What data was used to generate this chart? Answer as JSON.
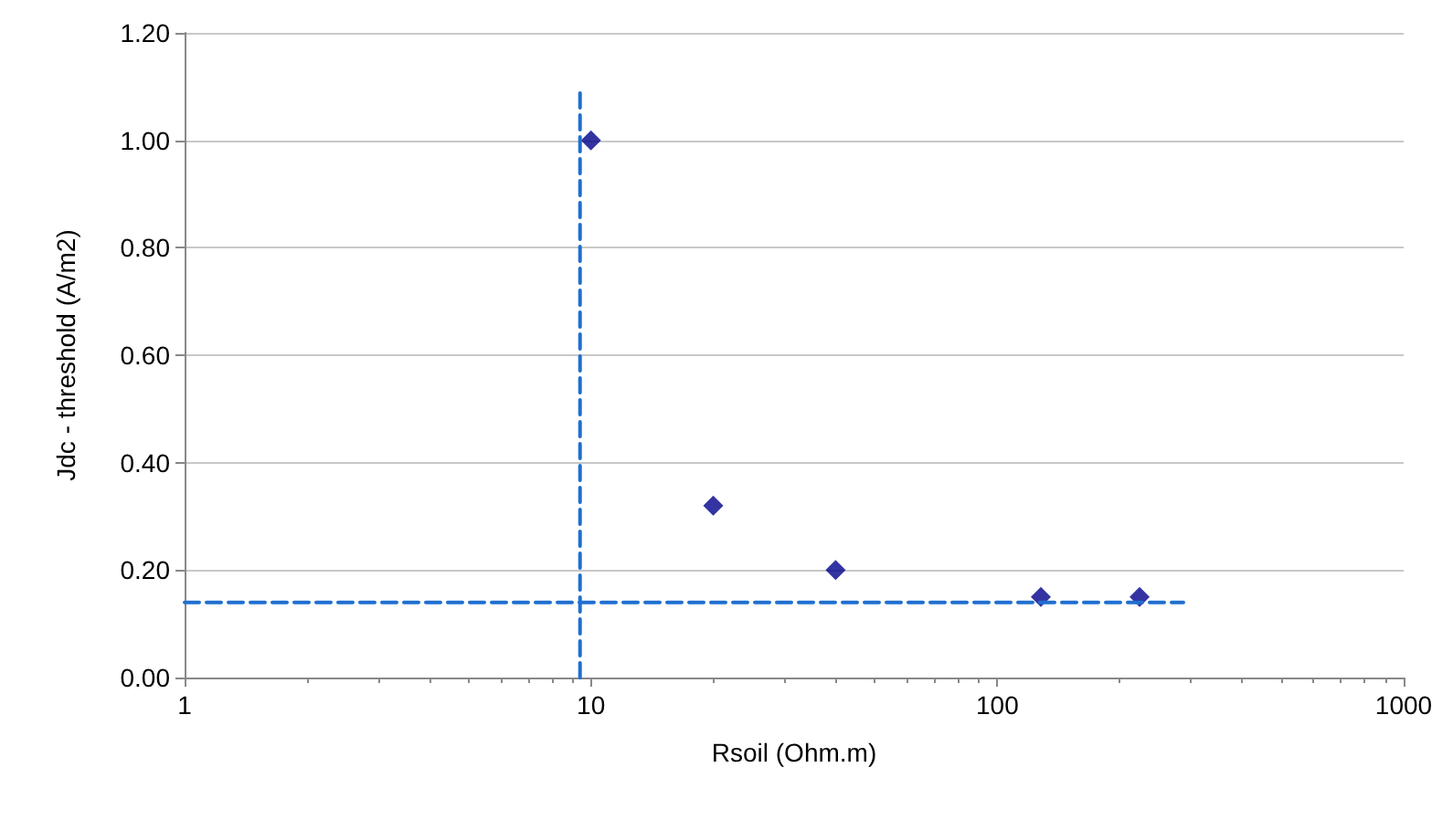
{
  "chart_data": {
    "type": "scatter",
    "xlabel": "Rsoil (Ohm.m)",
    "ylabel": "Jdc - threshold (A/m2)",
    "log": "x",
    "grid": "y",
    "marker": "diamond",
    "xlim": [
      1,
      1000
    ],
    "xticks": [
      1,
      10,
      100,
      1000
    ],
    "ylim": [
      0,
      1.2
    ],
    "yticks": [
      {
        "value": 0,
        "label": "0.00"
      },
      {
        "value": 0.2,
        "label": "0.20"
      },
      {
        "value": 0.4,
        "label": "0.40"
      },
      {
        "value": 0.6,
        "label": "0.60"
      },
      {
        "value": 0.8,
        "label": "0.80"
      },
      {
        "value": 1,
        "label": "1.00"
      },
      {
        "value": 1.2,
        "label": "1.20"
      }
    ],
    "series": [
      {
        "color": "#00008b",
        "x": [
          10,
          20,
          40,
          128,
          224
        ],
        "values": [
          1.0,
          0.32,
          0.2,
          0.15,
          0.15
        ]
      },
      {
        "type": "line",
        "color": "#1f6fd0",
        "line_style": "dashed",
        "marker": "none",
        "x": [
          9.4,
          9.4
        ],
        "values": [
          0,
          1.1
        ]
      },
      {
        "type": "line",
        "color": "#1f6fd0",
        "line_style": "dashed",
        "marker": "none",
        "x": [
          1,
          287
        ],
        "values": [
          0.14,
          0.14
        ]
      }
    ]
  }
}
